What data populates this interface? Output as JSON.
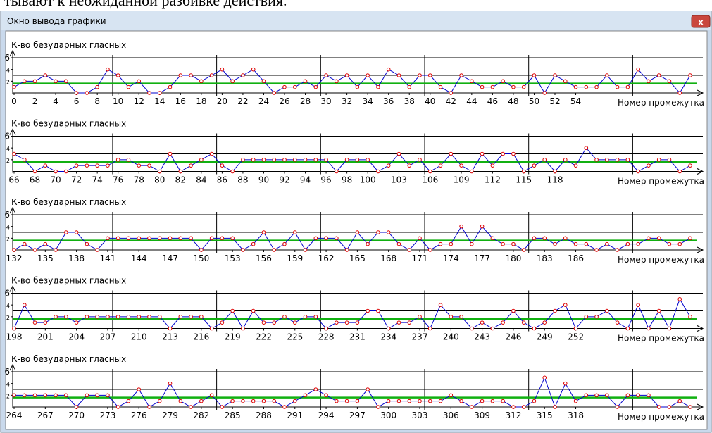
{
  "document_fragment": "тывают к неожиданной разбивке действия.",
  "window": {
    "title": "Окно вывода графики"
  },
  "chart_data": [
    {
      "type": "line",
      "y_label": "К-во безударных гласных",
      "x_label": "Номер промежутка",
      "color": "#0000cc",
      "marker_color": "#dd0000",
      "ref_line": 1.6,
      "ref_color": "#11b011",
      "grid_lines": [
        3,
        6
      ],
      "xlim": [
        0,
        65
      ],
      "ylim": [
        0,
        6
      ],
      "yticks": [
        2,
        4,
        6
      ],
      "xticks": [
        0,
        2,
        4,
        6,
        8,
        10,
        12,
        14,
        16,
        18,
        20,
        22,
        24,
        26,
        28,
        30,
        32,
        34,
        36,
        38,
        40,
        42,
        44,
        46,
        48,
        50,
        52,
        54
      ],
      "x": [
        0,
        1,
        2,
        3,
        4,
        5,
        6,
        7,
        8,
        9,
        10,
        11,
        12,
        13,
        14,
        15,
        16,
        17,
        18,
        19,
        20,
        21,
        22,
        23,
        24,
        25,
        26,
        27,
        28,
        29,
        30,
        31,
        32,
        33,
        34,
        35,
        36,
        37,
        38,
        39,
        40,
        41,
        42,
        43,
        44,
        45,
        46,
        47,
        48,
        49,
        50,
        51,
        52,
        53,
        54,
        55,
        56,
        57,
        58,
        59,
        60,
        61,
        62,
        63,
        64,
        65
      ],
      "values": [
        1,
        2,
        2,
        3,
        2,
        2,
        0,
        0,
        1,
        4,
        3,
        1,
        2,
        0,
        0,
        1,
        3,
        3,
        2,
        3,
        4,
        2,
        3,
        4,
        2,
        0,
        1,
        1,
        2,
        1,
        3,
        2,
        3,
        1,
        3,
        1,
        4,
        3,
        1,
        3,
        3,
        1,
        0,
        3,
        2,
        1,
        1,
        2,
        1,
        1,
        3,
        0,
        3,
        2,
        1,
        1,
        1,
        3,
        1,
        1,
        4,
        2,
        3,
        2,
        0,
        3
      ]
    },
    {
      "type": "line",
      "y_label": "К-во безударных гласных",
      "x_label": "Номер промежутка",
      "color": "#0000cc",
      "marker_color": "#dd0000",
      "ref_line": 1.6,
      "ref_color": "#11b011",
      "grid_lines": [
        3,
        6
      ],
      "xlim": [
        66,
        131
      ],
      "ylim": [
        0,
        6
      ],
      "yticks": [
        2,
        4,
        6
      ],
      "xticks": [
        66,
        68,
        70,
        72,
        74,
        76,
        78,
        80,
        82,
        84,
        86,
        88,
        90,
        92,
        94,
        96,
        98,
        100,
        103,
        106,
        109,
        112,
        115,
        118
      ],
      "x": [
        66,
        67,
        68,
        69,
        70,
        71,
        72,
        73,
        74,
        75,
        76,
        77,
        78,
        79,
        80,
        81,
        82,
        83,
        84,
        85,
        86,
        87,
        88,
        89,
        90,
        91,
        92,
        93,
        94,
        95,
        96,
        97,
        98,
        99,
        100,
        101,
        102,
        103,
        104,
        105,
        106,
        107,
        108,
        109,
        110,
        111,
        112,
        113,
        114,
        115,
        116,
        117,
        118,
        119,
        120,
        121,
        122,
        123,
        124,
        125,
        126,
        127,
        128,
        129,
        130,
        131
      ],
      "values": [
        3,
        2,
        0,
        1,
        0,
        0,
        1,
        1,
        1,
        1,
        2,
        2,
        1,
        1,
        0,
        3,
        0,
        1,
        2,
        3,
        1,
        0,
        2,
        2,
        2,
        2,
        2,
        2,
        2,
        2,
        2,
        0,
        2,
        2,
        2,
        0,
        1,
        3,
        1,
        2,
        0,
        1,
        3,
        1,
        0,
        3,
        1,
        3,
        3,
        0,
        1,
        2,
        0,
        2,
        1,
        4,
        2,
        2,
        2,
        2,
        0,
        1,
        2,
        2,
        0,
        1
      ]
    },
    {
      "type": "line",
      "y_label": "К-во безударных гласных",
      "x_label": "Номер промежутка",
      "color": "#0000cc",
      "marker_color": "#dd0000",
      "ref_line": 1.6,
      "ref_color": "#11b011",
      "grid_lines": [
        3,
        6
      ],
      "xlim": [
        132,
        197
      ],
      "ylim": [
        0,
        6
      ],
      "yticks": [
        2,
        4,
        6
      ],
      "xticks": [
        132,
        135,
        138,
        141,
        144,
        147,
        150,
        153,
        156,
        159,
        162,
        165,
        168,
        171,
        174,
        177,
        180,
        183,
        186
      ],
      "x": [
        132,
        133,
        134,
        135,
        136,
        137,
        138,
        139,
        140,
        141,
        142,
        143,
        144,
        145,
        146,
        147,
        148,
        149,
        150,
        151,
        152,
        153,
        154,
        155,
        156,
        157,
        158,
        159,
        160,
        161,
        162,
        163,
        164,
        165,
        166,
        167,
        168,
        169,
        170,
        171,
        172,
        173,
        174,
        175,
        176,
        177,
        178,
        179,
        180,
        181,
        182,
        183,
        184,
        185,
        186,
        187,
        188,
        189,
        190,
        191,
        192,
        193,
        194,
        195,
        196,
        197
      ],
      "values": [
        0,
        1,
        0,
        1,
        0,
        3,
        3,
        1,
        0,
        2,
        2,
        2,
        2,
        2,
        2,
        2,
        2,
        2,
        0,
        2,
        2,
        2,
        0,
        1,
        3,
        0,
        1,
        3,
        0,
        2,
        2,
        2,
        0,
        3,
        1,
        3,
        3,
        1,
        0,
        2,
        0,
        1,
        1,
        4,
        1,
        4,
        2,
        1,
        1,
        0,
        2,
        2,
        1,
        2,
        1,
        1,
        0,
        1,
        0,
        1,
        1,
        2,
        2,
        1,
        1,
        2
      ]
    },
    {
      "type": "line",
      "y_label": "К-во безударных гласных",
      "x_label": "Номер промежутка",
      "color": "#0000cc",
      "marker_color": "#dd0000",
      "ref_line": 1.6,
      "ref_color": "#11b011",
      "grid_lines": [
        3,
        6
      ],
      "xlim": [
        198,
        263
      ],
      "ylim": [
        0,
        6
      ],
      "yticks": [
        2,
        4,
        6
      ],
      "xticks": [
        198,
        201,
        204,
        207,
        210,
        213,
        216,
        219,
        222,
        225,
        228,
        231,
        234,
        237,
        240,
        243,
        246,
        249,
        252
      ],
      "x": [
        198,
        199,
        200,
        201,
        202,
        203,
        204,
        205,
        206,
        207,
        208,
        209,
        210,
        211,
        212,
        213,
        214,
        215,
        216,
        217,
        218,
        219,
        220,
        221,
        222,
        223,
        224,
        225,
        226,
        227,
        228,
        229,
        230,
        231,
        232,
        233,
        234,
        235,
        236,
        237,
        238,
        239,
        240,
        241,
        242,
        243,
        244,
        245,
        246,
        247,
        248,
        249,
        250,
        251,
        252,
        253,
        254,
        255,
        256,
        257,
        258,
        259,
        260,
        261,
        262,
        263
      ],
      "values": [
        0,
        4,
        1,
        1,
        2,
        2,
        1,
        2,
        2,
        2,
        2,
        2,
        2,
        2,
        2,
        0,
        2,
        2,
        2,
        0,
        1,
        3,
        0,
        3,
        1,
        1,
        2,
        1,
        2,
        2,
        0,
        1,
        1,
        1,
        3,
        3,
        0,
        1,
        1,
        2,
        0,
        4,
        2,
        2,
        0,
        1,
        0,
        1,
        3,
        1,
        0,
        1,
        3,
        4,
        0,
        2,
        2,
        3,
        1,
        0,
        4,
        0,
        3,
        0,
        5,
        2
      ]
    },
    {
      "type": "line",
      "y_label": "К-во безударных гласных",
      "x_label": "Номер промежутка",
      "color": "#0000cc",
      "marker_color": "#dd0000",
      "ref_line": 1.6,
      "ref_color": "#11b011",
      "grid_lines": [
        3,
        6
      ],
      "xlim": [
        264,
        329
      ],
      "ylim": [
        0,
        6
      ],
      "yticks": [
        2,
        4,
        6
      ],
      "xticks": [
        264,
        267,
        270,
        273,
        276,
        279,
        282,
        285,
        288,
        291,
        294,
        297,
        300,
        303,
        306,
        309,
        312,
        315,
        318
      ],
      "x": [
        264,
        265,
        266,
        267,
        268,
        269,
        270,
        271,
        272,
        273,
        274,
        275,
        276,
        277,
        278,
        279,
        280,
        281,
        282,
        283,
        284,
        285,
        286,
        287,
        288,
        289,
        290,
        291,
        292,
        293,
        294,
        295,
        296,
        297,
        298,
        299,
        300,
        301,
        302,
        303,
        304,
        305,
        306,
        307,
        308,
        309,
        310,
        311,
        312,
        313,
        314,
        315,
        316,
        317,
        318,
        319,
        320,
        321,
        322,
        323,
        324,
        325,
        326,
        327,
        328,
        329
      ],
      "values": [
        2,
        2,
        2,
        2,
        2,
        2,
        0,
        2,
        2,
        2,
        0,
        1,
        3,
        0,
        1,
        4,
        1,
        0,
        1,
        2,
        0,
        1,
        1,
        1,
        1,
        1,
        0,
        1,
        2,
        3,
        2,
        1,
        1,
        1,
        3,
        0,
        1,
        1,
        1,
        1,
        1,
        1,
        2,
        1,
        0,
        1,
        1,
        1,
        0,
        0,
        1,
        5,
        0,
        4,
        1,
        2,
        2,
        2,
        0,
        2,
        2,
        2,
        0,
        0,
        1,
        0
      ]
    }
  ]
}
